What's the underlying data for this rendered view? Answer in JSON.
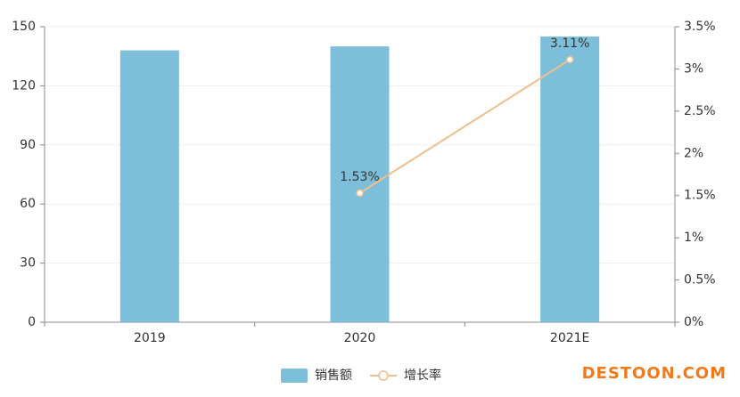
{
  "chart_data": {
    "type": "bar-line",
    "categories": [
      "2019",
      "2020",
      "2021E"
    ],
    "series": [
      {
        "name": "销售额",
        "type": "bar",
        "color": "#7dbedb",
        "values": [
          138,
          140,
          145
        ]
      },
      {
        "name": "增长率",
        "type": "line",
        "axis": "y2",
        "color": "#eebf8f",
        "values": [
          null,
          1.53,
          3.11
        ],
        "value_labels": [
          null,
          "1.53%",
          "3.11%"
        ]
      }
    ],
    "ylim": [
      0,
      150
    ],
    "yticks": [
      0,
      30,
      60,
      90,
      120,
      150
    ],
    "y2lim": [
      0,
      3.5
    ],
    "y2ticks": [
      {
        "value": 0,
        "label": "0%"
      },
      {
        "value": 0.5,
        "label": "0.5%"
      },
      {
        "value": 1,
        "label": "1%"
      },
      {
        "value": 1.5,
        "label": "1.5%"
      },
      {
        "value": 2,
        "label": "2%"
      },
      {
        "value": 2.5,
        "label": "2.5%"
      },
      {
        "value": 3,
        "label": "3%"
      },
      {
        "value": 3.5,
        "label": "3.5%"
      }
    ],
    "grid": true,
    "watermark": "DESTOON.COM"
  }
}
